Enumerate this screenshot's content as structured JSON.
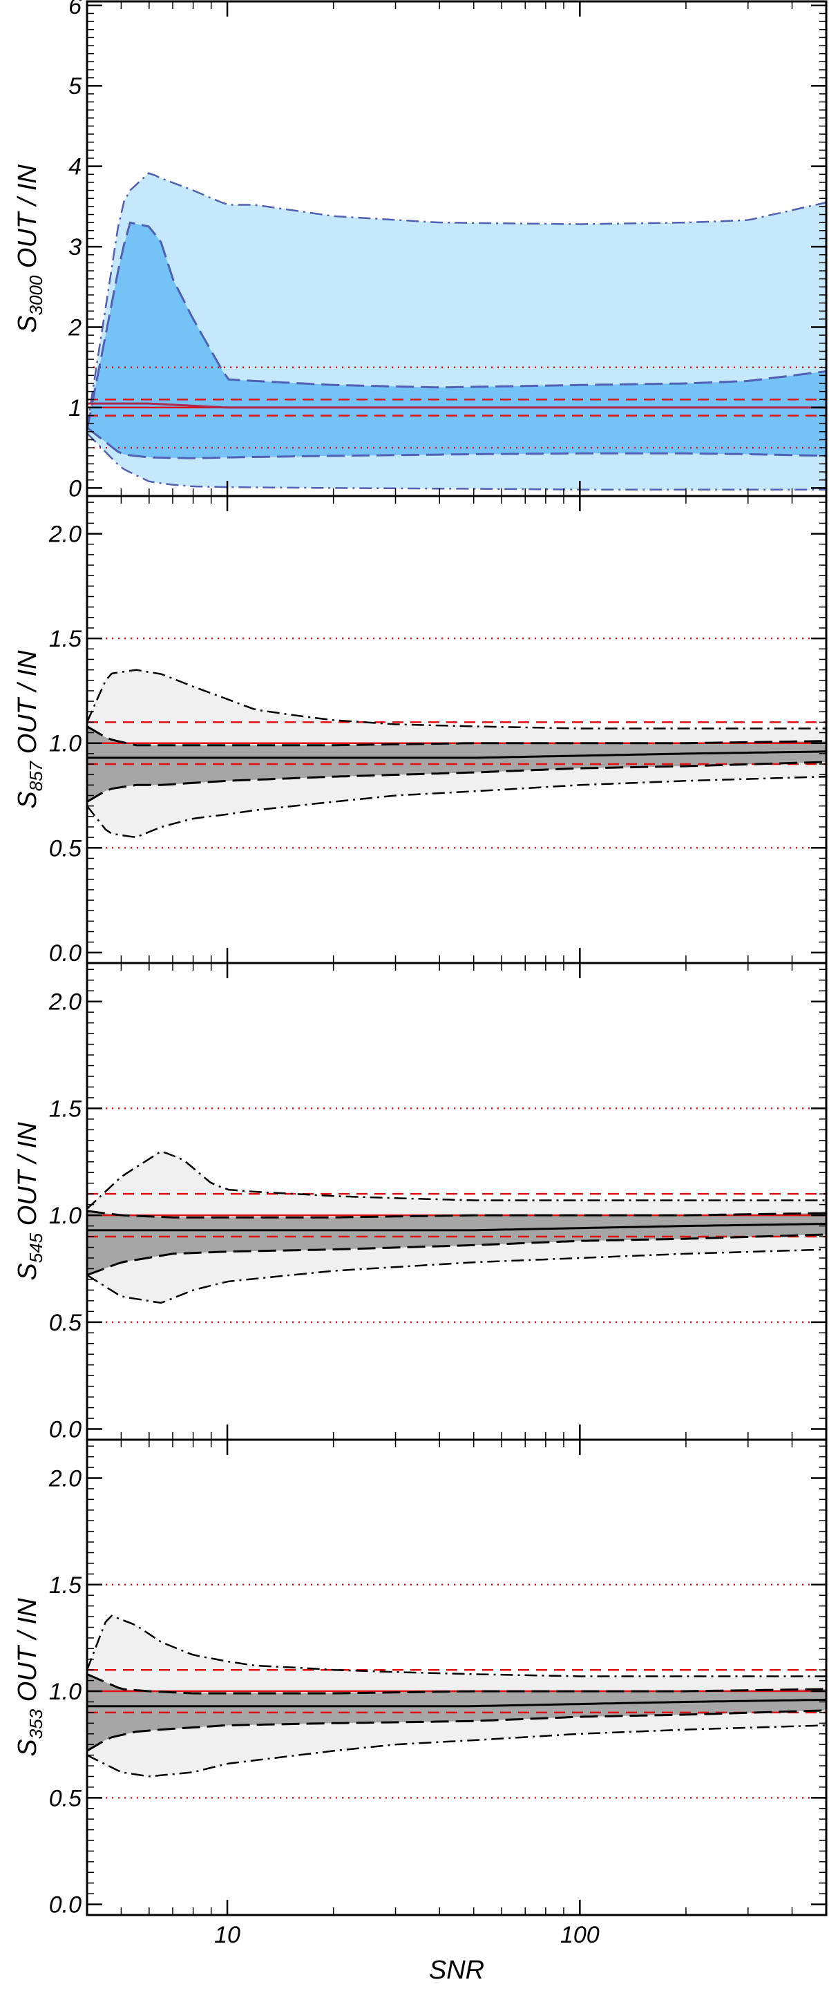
{
  "chart_data": {
    "type": "area",
    "xlabel": "SNR",
    "x_scale": "log",
    "xlim": [
      4,
      500
    ],
    "x_ticks": [
      10,
      100
    ],
    "x_tick_labels": [
      "10",
      "100"
    ],
    "legend": "none",
    "reference_lines": {
      "solid": 1.0,
      "dashed": [
        0.9,
        1.1
      ],
      "dotted": [
        0.5,
        1.5
      ]
    },
    "panels": [
      {
        "ylabel_main": "S",
        "ylabel_sub": "3000",
        "ylabel_rest": " OUT / IN",
        "ylim": [
          -0.1,
          6.05
        ],
        "y_ticks": [
          0,
          1,
          2,
          3,
          4,
          5,
          6
        ],
        "y_tick_labels": [
          "0",
          "1",
          "2",
          "3",
          "4",
          "5",
          "6"
        ],
        "x_tick_labels_shown": false,
        "colors": {
          "outer": "#c6e8fc",
          "inner": "#74c2f6",
          "band_line": "#5060b4",
          "median": "#b02848",
          "ref": "#e01010"
        },
        "series": [
          {
            "name": "",
            "x": [
              4,
              5,
              5.3,
              6,
              6.5,
              8,
              10,
              12,
              20,
              40,
              100,
              200,
              300,
              500
            ],
            "values": [
              0.75,
              3.5,
              3.7,
              3.92,
              3.85,
              3.7,
              3.52,
              3.52,
              3.38,
              3.3,
              3.28,
              3.3,
              3.33,
              3.55
            ]
          },
          {
            "name": "",
            "x": [
              4,
              5,
              5.3,
              6,
              6.5,
              7,
              8,
              10,
              12,
              20,
              40,
              100,
              200,
              300,
              500
            ],
            "values": [
              0.72,
              2.9,
              3.3,
              3.25,
              3.05,
              2.6,
              2.1,
              1.35,
              1.33,
              1.28,
              1.25,
              1.28,
              1.3,
              1.33,
              1.45
            ]
          },
          {
            "name": "",
            "x": [
              4,
              6,
              10,
              20,
              50,
              100,
              200,
              500
            ],
            "values": [
              1.05,
              1.05,
              1.0,
              1.0,
              1.0,
              1.0,
              1.0,
              1.0
            ]
          },
          {
            "name": "",
            "x": [
              4,
              5,
              6,
              8,
              10,
              20,
              50,
              100,
              200,
              300,
              500
            ],
            "values": [
              0.75,
              0.42,
              0.38,
              0.37,
              0.38,
              0.4,
              0.42,
              0.43,
              0.43,
              0.42,
              0.4
            ]
          },
          {
            "name": "",
            "x": [
              4,
              5,
              6,
              7,
              8,
              10,
              20,
              50,
              100,
              200,
              500
            ],
            "values": [
              0.68,
              0.25,
              0.08,
              0.04,
              0.02,
              0.01,
              0.0,
              -0.01,
              -0.02,
              -0.02,
              -0.02
            ]
          }
        ]
      },
      {
        "ylabel_main": "S",
        "ylabel_sub": "857",
        "ylabel_rest": " OUT / IN",
        "ylim": [
          -0.05,
          2.18
        ],
        "y_ticks": [
          0.0,
          0.5,
          1.0,
          1.5,
          2.0
        ],
        "y_tick_labels": [
          "0.0",
          "0.5",
          "1.0",
          "1.5",
          "2.0"
        ],
        "x_tick_labels_shown": false,
        "colors": {
          "outer": "#f0f0f0",
          "inner": "#a6a6a6",
          "band_line": "#000000",
          "median": "#000000",
          "ref": "#e01010"
        },
        "series": [
          {
            "name": "",
            "x": [
              4,
              4.6,
              5.5,
              6.5,
              8,
              10,
              12,
              16,
              20,
              30,
              50,
              100,
              200,
              500
            ],
            "values": [
              1.1,
              1.33,
              1.35,
              1.33,
              1.27,
              1.21,
              1.16,
              1.13,
              1.11,
              1.09,
              1.08,
              1.07,
              1.07,
              1.07
            ]
          },
          {
            "name": "",
            "x": [
              4,
              4.6,
              5.5,
              6.5,
              8,
              10,
              12,
              20,
              50,
              100,
              200,
              500
            ],
            "values": [
              1.08,
              1.02,
              0.99,
              0.99,
              0.99,
              0.99,
              0.99,
              0.99,
              1.0,
              1.0,
              1.0,
              1.01
            ]
          },
          {
            "name": "",
            "x": [
              4,
              6,
              10,
              20,
              50,
              100,
              200,
              500
            ],
            "values": [
              0.93,
              0.93,
              0.93,
              0.93,
              0.93,
              0.94,
              0.95,
              0.96
            ]
          },
          {
            "name": "",
            "x": [
              4,
              4.6,
              5.5,
              6.5,
              8,
              10,
              20,
              50,
              100,
              200,
              500
            ],
            "values": [
              0.72,
              0.78,
              0.8,
              0.8,
              0.81,
              0.82,
              0.84,
              0.86,
              0.88,
              0.89,
              0.91
            ]
          },
          {
            "name": "",
            "x": [
              4,
              4.6,
              5.5,
              6.5,
              8,
              10,
              12,
              20,
              30,
              50,
              100,
              200,
              500
            ],
            "values": [
              0.7,
              0.57,
              0.55,
              0.6,
              0.64,
              0.66,
              0.68,
              0.72,
              0.75,
              0.77,
              0.8,
              0.82,
              0.84
            ]
          }
        ]
      },
      {
        "ylabel_main": "S",
        "ylabel_sub": "545",
        "ylabel_rest": " OUT / IN",
        "ylim": [
          -0.05,
          2.18
        ],
        "y_ticks": [
          0.0,
          0.5,
          1.0,
          1.5,
          2.0
        ],
        "y_tick_labels": [
          "0.0",
          "0.5",
          "1.0",
          "1.5",
          "2.0"
        ],
        "x_tick_labels_shown": false,
        "colors": {
          "outer": "#f0f0f0",
          "inner": "#a6a6a6",
          "band_line": "#000000",
          "median": "#000000",
          "ref": "#e01010"
        },
        "series": [
          {
            "name": "",
            "x": [
              4,
              5,
              6.5,
              7.5,
              9,
              10,
              12,
              20,
              30,
              50,
              100,
              200,
              500
            ],
            "values": [
              1.03,
              1.18,
              1.3,
              1.26,
              1.15,
              1.12,
              1.11,
              1.09,
              1.08,
              1.07,
              1.07,
              1.07,
              1.07
            ]
          },
          {
            "name": "",
            "x": [
              4,
              5,
              7,
              10,
              20,
              50,
              100,
              200,
              500
            ],
            "values": [
              1.02,
              1.0,
              0.99,
              0.99,
              0.99,
              1.0,
              1.0,
              1.0,
              1.01
            ]
          },
          {
            "name": "",
            "x": [
              4,
              6,
              10,
              20,
              50,
              100,
              200,
              500
            ],
            "values": [
              0.93,
              0.93,
              0.93,
              0.93,
              0.93,
              0.94,
              0.95,
              0.96
            ]
          },
          {
            "name": "",
            "x": [
              4,
              5,
              7,
              10,
              20,
              50,
              100,
              200,
              500
            ],
            "values": [
              0.72,
              0.78,
              0.82,
              0.83,
              0.84,
              0.86,
              0.88,
              0.89,
              0.91
            ]
          },
          {
            "name": "",
            "x": [
              4,
              5,
              6.5,
              8,
              10,
              20,
              50,
              100,
              200,
              500
            ],
            "values": [
              0.72,
              0.62,
              0.59,
              0.65,
              0.69,
              0.74,
              0.78,
              0.8,
              0.82,
              0.84
            ]
          }
        ]
      },
      {
        "ylabel_main": "S",
        "ylabel_sub": "353",
        "ylabel_rest": " OUT / IN",
        "ylim": [
          -0.05,
          2.18
        ],
        "y_ticks": [
          0.0,
          0.5,
          1.0,
          1.5,
          2.0
        ],
        "y_tick_labels": [
          "0.0",
          "0.5",
          "1.0",
          "1.5",
          "2.0"
        ],
        "x_tick_labels_shown": true,
        "colors": {
          "outer": "#f0f0f0",
          "inner": "#a6a6a6",
          "band_line": "#000000",
          "median": "#000000",
          "ref": "#e01010"
        },
        "series": [
          {
            "name": "",
            "x": [
              4,
              4.6,
              5.5,
              6.5,
              8,
              10,
              12,
              16,
              20,
              30,
              50,
              100,
              200,
              500
            ],
            "values": [
              1.1,
              1.36,
              1.31,
              1.23,
              1.17,
              1.14,
              1.12,
              1.11,
              1.1,
              1.09,
              1.08,
              1.07,
              1.07,
              1.07
            ]
          },
          {
            "name": "",
            "x": [
              4,
              5,
              6,
              8,
              10,
              20,
              50,
              100,
              200,
              500
            ],
            "values": [
              1.08,
              1.01,
              1.0,
              0.99,
              0.99,
              0.99,
              1.0,
              1.0,
              1.0,
              1.01
            ]
          },
          {
            "name": "",
            "x": [
              4,
              6,
              10,
              20,
              50,
              100,
              200,
              500
            ],
            "values": [
              0.93,
              0.93,
              0.93,
              0.93,
              0.93,
              0.94,
              0.95,
              0.96
            ]
          },
          {
            "name": "",
            "x": [
              4,
              4.6,
              5.5,
              6.5,
              8,
              10,
              20,
              50,
              100,
              200,
              500
            ],
            "values": [
              0.72,
              0.78,
              0.81,
              0.82,
              0.83,
              0.84,
              0.85,
              0.86,
              0.88,
              0.89,
              0.91
            ]
          },
          {
            "name": "",
            "x": [
              4,
              5,
              6,
              8,
              10,
              20,
              30,
              50,
              100,
              200,
              500
            ],
            "values": [
              0.7,
              0.62,
              0.6,
              0.62,
              0.66,
              0.72,
              0.75,
              0.77,
              0.8,
              0.82,
              0.84
            ]
          }
        ]
      }
    ]
  }
}
